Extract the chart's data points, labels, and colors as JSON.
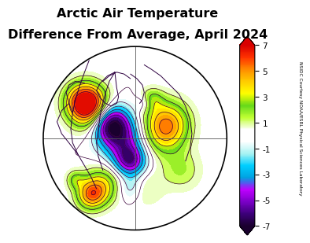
{
  "title_line1": "Arctic Air Temperature",
  "title_line2": "Difference From Average, April 2024",
  "title_fontsize": 11.5,
  "title_bold": true,
  "colorbar_label": "NSIDC Courtesy NOAA/ESRL Physical Sciences Laboratory",
  "colorbar_ticks": [
    -7,
    -5,
    -3,
    -1,
    1,
    3,
    5,
    7
  ],
  "vmin": -7,
  "vmax": 7,
  "background_color": "#ffffff",
  "colorbar_colors": [
    "#1a0030",
    "#3d007a",
    "#7b00c8",
    "#bf00ff",
    "#00a0e0",
    "#00cfff",
    "#ffffff",
    "#ffffff",
    "#ffff00",
    "#ffd700",
    "#ffa500",
    "#ff6600",
    "#ff0000",
    "#cc0000"
  ]
}
